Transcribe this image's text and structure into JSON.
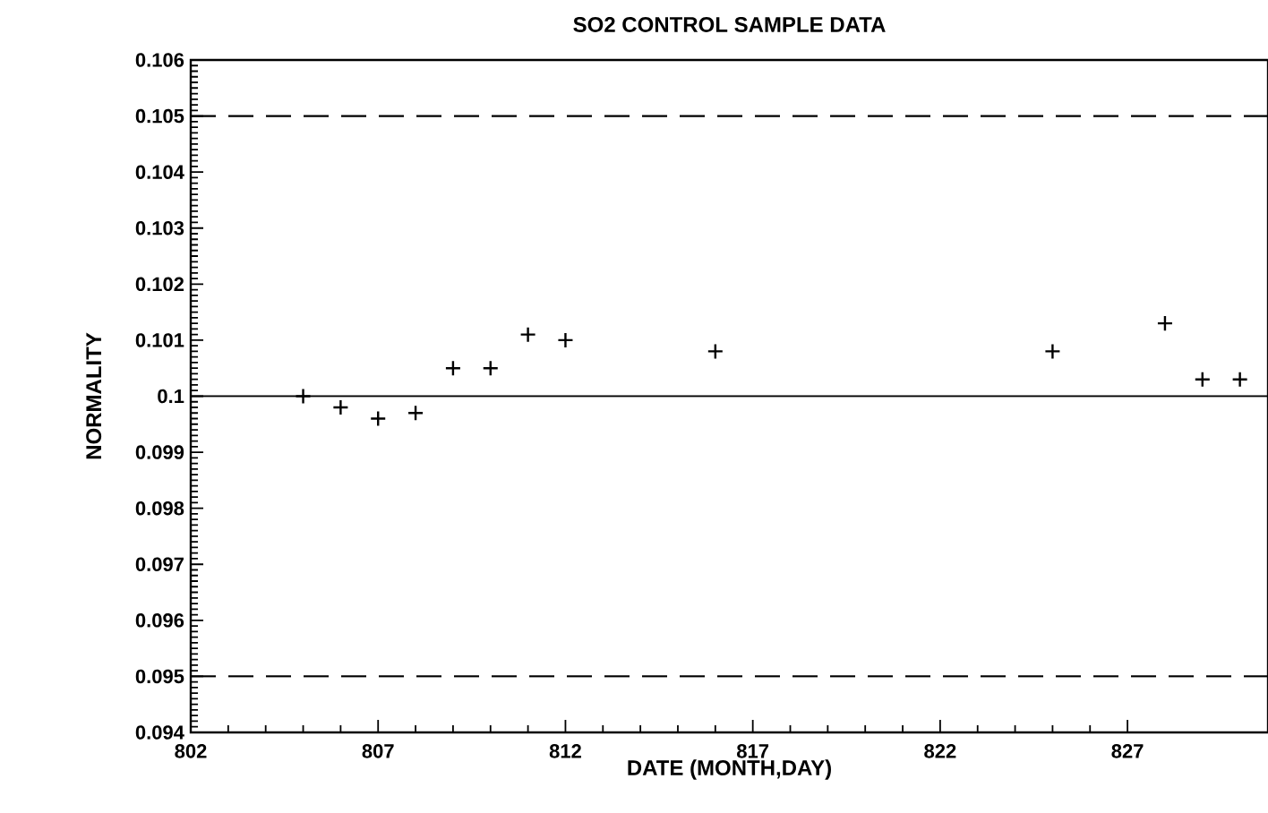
{
  "chart_data": {
    "type": "scatter",
    "title": "SO2 CONTROL SAMPLE DATA",
    "xlabel": "DATE (MONTH,DAY)",
    "ylabel": "NORMALITY",
    "x": [
      805,
      806,
      807,
      808,
      809,
      810,
      811,
      812,
      816,
      825,
      828,
      829,
      830
    ],
    "values": [
      0.1,
      0.0998,
      0.0996,
      0.0997,
      0.1005,
      0.1005,
      0.1011,
      0.101,
      0.1008,
      0.1008,
      0.1013,
      0.1003,
      0.1003
    ],
    "color": "#000000",
    "marker": "cross",
    "xlim": [
      802,
      830.75
    ],
    "xticks": [
      802,
      807,
      812,
      817,
      822,
      827
    ],
    "ylim": [
      0.094,
      0.106
    ],
    "yticks": [
      0.094,
      0.095,
      0.096,
      0.097,
      0.098,
      0.099,
      0.1,
      0.101,
      0.102,
      0.103,
      0.104,
      0.105,
      0.106
    ],
    "ref_lines": [
      {
        "axis": "y",
        "value": 0.105,
        "line_style": "dashed",
        "color": "#000000"
      },
      {
        "axis": "y",
        "value": 0.1,
        "line_style": "solid",
        "color": "#000000"
      },
      {
        "axis": "y",
        "value": 0.095,
        "line_style": "dashed",
        "color": "#000000"
      }
    ]
  }
}
